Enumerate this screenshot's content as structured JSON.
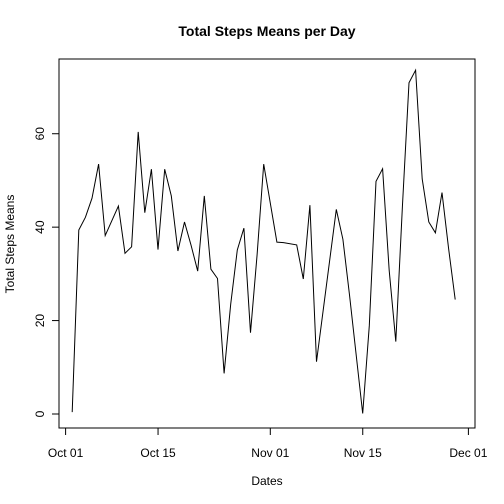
{
  "chart_data": {
    "type": "line",
    "title": "Total Steps Means per Day",
    "xlabel": "Dates",
    "ylabel": "Total Steps Means",
    "x_tick_labels": [
      "Oct 01",
      "Oct 15",
      "Nov 01",
      "Nov 15",
      "Dec 01"
    ],
    "x_tick_dates": [
      "2012-10-01",
      "2012-10-15",
      "2012-11-01",
      "2012-11-15",
      "2012-12-01"
    ],
    "y_ticks": [
      0,
      20,
      40,
      60
    ],
    "y_tick_labels": [
      "0",
      "20",
      "40",
      "60"
    ],
    "xlim": [
      "2012-09-30",
      "2012-12-02"
    ],
    "ylim": [
      -3,
      76
    ],
    "grid": false,
    "series": [
      {
        "color": "#000000",
        "x": [
          "2012-10-02",
          "2012-10-03",
          "2012-10-04",
          "2012-10-05",
          "2012-10-06",
          "2012-10-07",
          "2012-10-09",
          "2012-10-10",
          "2012-10-11",
          "2012-10-12",
          "2012-10-13",
          "2012-10-14",
          "2012-10-15",
          "2012-10-16",
          "2012-10-17",
          "2012-10-18",
          "2012-10-19",
          "2012-10-20",
          "2012-10-21",
          "2012-10-22",
          "2012-10-23",
          "2012-10-24",
          "2012-10-25",
          "2012-10-26",
          "2012-10-27",
          "2012-10-28",
          "2012-10-29",
          "2012-10-30",
          "2012-10-31",
          "2012-11-02",
          "2012-11-03",
          "2012-11-05",
          "2012-11-06",
          "2012-11-07",
          "2012-11-08",
          "2012-11-11",
          "2012-11-12",
          "2012-11-13",
          "2012-11-15",
          "2012-11-16",
          "2012-11-17",
          "2012-11-18",
          "2012-11-19",
          "2012-11-20",
          "2012-11-21",
          "2012-11-22",
          "2012-11-23",
          "2012-11-24",
          "2012-11-25",
          "2012-11-26",
          "2012-11-27",
          "2012-11-28",
          "2012-11-29"
        ],
        "y": [
          0.4,
          39.4,
          42.1,
          46.2,
          53.5,
          38.2,
          44.5,
          34.4,
          35.8,
          60.4,
          43.1,
          52.4,
          35.2,
          52.4,
          46.7,
          34.9,
          41.1,
          36.1,
          30.6,
          46.7,
          31.0,
          29.0,
          8.7,
          23.5,
          35.1,
          39.8,
          17.4,
          34.1,
          53.5,
          36.8,
          36.7,
          36.2,
          28.9,
          44.7,
          11.2,
          43.8,
          37.4,
          25.5,
          0.1,
          18.9,
          49.8,
          52.5,
          30.7,
          15.5,
          44.4,
          70.9,
          73.6,
          50.3,
          41.1,
          38.8,
          47.4,
          35.4,
          24.5
        ]
      }
    ]
  }
}
